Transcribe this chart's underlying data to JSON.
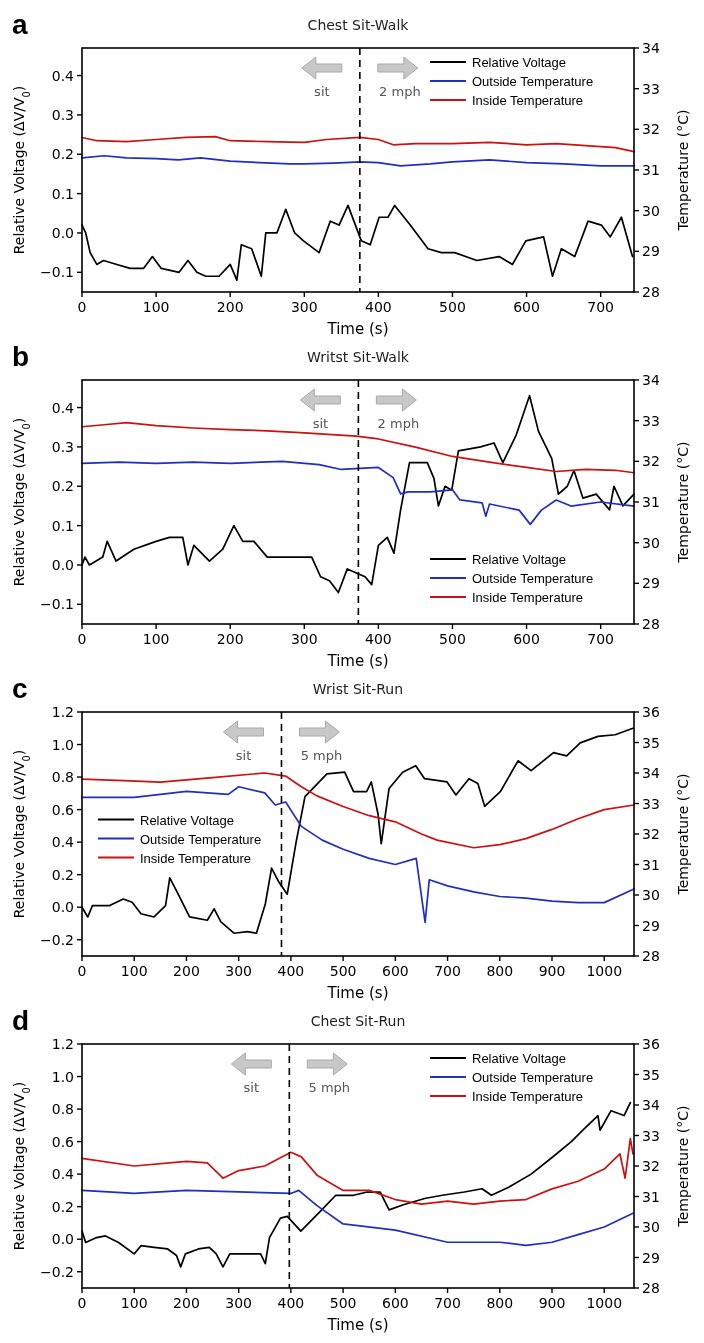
{
  "chart_data": [
    {
      "type": "line",
      "title": "Chest Sit-Walk",
      "xlabel": "Time (s)",
      "ylabel": "Relative Voltage (ΔV/V$_{0}$)",
      "y2label": "Temperature (°C)",
      "annotations": [
        "a",
        "sit",
        "2 mph"
      ],
      "legend": "top right",
      "xlim": [
        0,
        745
      ],
      "xticks": [
        0,
        100,
        200,
        300,
        400,
        500,
        600,
        700
      ],
      "ylim": [
        -0.15,
        0.47
      ],
      "yticks": [
        {
          "value": -0.1,
          "label": "−0.1"
        },
        {
          "value": 0,
          "label": "0.0"
        },
        0.1,
        0.2,
        0.3,
        0.4
      ],
      "y2lim": [
        28,
        34
      ],
      "y2ticks": [
        28,
        29,
        30,
        31,
        32,
        33,
        34
      ],
      "ref_lines": [
        {
          "axis": "x",
          "value": 375,
          "color": "#000000",
          "line_style": "dashed"
        }
      ],
      "series": [
        {
          "name": "Relative Voltage",
          "color": "#000000",
          "x": [
            0,
            5,
            11,
            20,
            29,
            47,
            65,
            83,
            95,
            107,
            131,
            143,
            155,
            167,
            185,
            200,
            209,
            215,
            229,
            242,
            248,
            263,
            275,
            287,
            299,
            320,
            335,
            347,
            359,
            377,
            389,
            401,
            413,
            422,
            443,
            467,
            485,
            503,
            533,
            563,
            581,
            599,
            623,
            635,
            647,
            665,
            683,
            701,
            713,
            728,
            743
          ],
          "values": [
            0.02,
            0.0,
            -0.05,
            -0.08,
            -0.07,
            -0.08,
            -0.09,
            -0.09,
            -0.06,
            -0.09,
            -0.1,
            -0.07,
            -0.1,
            -0.11,
            -0.11,
            -0.08,
            -0.12,
            -0.03,
            -0.04,
            -0.11,
            0.0,
            0.0,
            0.06,
            0.0,
            -0.02,
            -0.05,
            0.03,
            0.02,
            0.07,
            -0.02,
            -0.03,
            0.04,
            0.04,
            0.07,
            0.02,
            -0.04,
            -0.05,
            -0.05,
            -0.07,
            -0.06,
            -0.08,
            -0.02,
            -0.01,
            -0.11,
            -0.04,
            -0.06,
            0.03,
            0.02,
            -0.01,
            0.04,
            -0.06
          ]
        },
        {
          "name": "Outside Temperature",
          "color": "#1f2fbf",
          "axis": "y2",
          "x": [
            0,
            30,
            60,
            100,
            130,
            160,
            200,
            240,
            280,
            300,
            340,
            375,
            400,
            430,
            470,
            500,
            550,
            600,
            650,
            700,
            745
          ],
          "values": [
            31.3,
            31.35,
            31.3,
            31.28,
            31.25,
            31.3,
            31.22,
            31.18,
            31.15,
            31.15,
            31.17,
            31.2,
            31.18,
            31.1,
            31.15,
            31.2,
            31.25,
            31.18,
            31.15,
            31.1,
            31.1
          ]
        },
        {
          "name": "Inside Temperature",
          "color": "#cc1111",
          "axis": "y2",
          "x": [
            0,
            20,
            60,
            100,
            140,
            180,
            200,
            250,
            300,
            330,
            375,
            400,
            420,
            450,
            500,
            550,
            600,
            640,
            680,
            720,
            745
          ],
          "values": [
            31.8,
            31.72,
            31.7,
            31.75,
            31.8,
            31.82,
            31.72,
            31.7,
            31.68,
            31.75,
            31.8,
            31.75,
            31.62,
            31.65,
            31.65,
            31.68,
            31.62,
            31.65,
            31.6,
            31.55,
            31.45
          ]
        }
      ]
    },
    {
      "type": "line",
      "title": "Writst Sit-Walk",
      "xlabel": "Time (s)",
      "ylabel": "Relative Voltage (ΔV/V$_{0}$)",
      "y2label": "Temperature (°C)",
      "annotations": [
        "b",
        "sit",
        "2 mph"
      ],
      "legend": "bottom right",
      "xlim": [
        0,
        745
      ],
      "xticks": [
        0,
        100,
        200,
        300,
        400,
        500,
        600,
        700
      ],
      "ylim": [
        -0.15,
        0.47
      ],
      "yticks": [
        {
          "value": -0.1,
          "label": "−0.1"
        },
        {
          "value": 0,
          "label": "0.0"
        },
        0.1,
        0.2,
        0.3,
        0.4
      ],
      "y2lim": [
        28,
        34
      ],
      "y2ticks": [
        28,
        29,
        30,
        31,
        32,
        33,
        34
      ],
      "ref_lines": [
        {
          "axis": "x",
          "value": 373,
          "color": "#000000",
          "line_style": "dashed"
        }
      ],
      "series": [
        {
          "name": "Relative Voltage",
          "color": "#000000",
          "x": [
            0,
            4,
            10,
            28,
            34,
            46,
            70,
            100,
            118,
            136,
            143,
            151,
            172,
            190,
            205,
            217,
            232,
            250,
            274,
            310,
            322,
            334,
            346,
            358,
            382,
            391,
            400,
            412,
            421,
            430,
            442,
            466,
            475,
            481,
            490,
            499,
            508,
            538,
            556,
            568,
            586,
            604,
            616,
            634,
            643,
            655,
            664,
            676,
            694,
            712,
            718,
            730,
            745
          ],
          "values": [
            0.0,
            0.02,
            0.0,
            0.02,
            0.06,
            0.01,
            0.04,
            0.06,
            0.07,
            0.07,
            0.0,
            0.05,
            0.01,
            0.04,
            0.1,
            0.06,
            0.06,
            0.02,
            0.02,
            0.02,
            -0.03,
            -0.04,
            -0.07,
            -0.01,
            -0.03,
            -0.05,
            0.05,
            0.07,
            0.03,
            0.14,
            0.26,
            0.26,
            0.22,
            0.15,
            0.2,
            0.19,
            0.29,
            0.3,
            0.31,
            0.26,
            0.33,
            0.43,
            0.34,
            0.27,
            0.18,
            0.2,
            0.24,
            0.17,
            0.18,
            0.14,
            0.2,
            0.15,
            0.18
          ]
        },
        {
          "name": "Outside Temperature",
          "color": "#1f2fbf",
          "axis": "y2",
          "x": [
            0,
            50,
            100,
            150,
            200,
            270,
            320,
            350,
            400,
            420,
            430,
            440,
            470,
            500,
            510,
            540,
            545,
            550,
            590,
            605,
            620,
            640,
            660,
            700,
            745
          ],
          "values": [
            31.95,
            31.98,
            31.95,
            31.98,
            31.95,
            32.0,
            31.92,
            31.8,
            31.85,
            31.6,
            31.2,
            31.25,
            31.25,
            31.3,
            31.05,
            30.98,
            30.65,
            30.95,
            30.8,
            30.45,
            30.8,
            31.05,
            30.9,
            31.0,
            30.9
          ]
        },
        {
          "name": "Inside Temperature",
          "color": "#cc1111",
          "axis": "y2",
          "x": [
            0,
            30,
            60,
            100,
            150,
            200,
            250,
            300,
            370,
            400,
            450,
            500,
            550,
            600,
            640,
            680,
            720,
            745
          ],
          "values": [
            32.85,
            32.9,
            32.95,
            32.88,
            32.82,
            32.78,
            32.75,
            32.7,
            32.62,
            32.55,
            32.35,
            32.12,
            31.98,
            31.85,
            31.75,
            31.8,
            31.78,
            31.72
          ]
        }
      ]
    },
    {
      "type": "line",
      "title": "Wrist Sit-Run",
      "xlabel": "Time (s)",
      "ylabel": "Relative Voltage (ΔV/V$_{0}$)",
      "y2label": "Temperature (°C)",
      "annotations": [
        "c",
        "sit",
        "5 mph"
      ],
      "legend": "left",
      "xlim": [
        0,
        1057
      ],
      "xticks": [
        0,
        100,
        200,
        300,
        400,
        500,
        600,
        700,
        800,
        900,
        1000
      ],
      "ylim": [
        -0.3,
        1.2
      ],
      "yticks": [
        {
          "value": -0.2,
          "label": "−0.2"
        },
        {
          "value": 0,
          "label": "0.0"
        },
        0.2,
        0.4,
        0.6,
        0.8,
        {
          "value": 1,
          "label": "1.0"
        },
        1.2
      ],
      "y2lim": [
        28,
        36
      ],
      "y2ticks": [
        28,
        29,
        30,
        31,
        32,
        33,
        34,
        35,
        36
      ],
      "ref_lines": [
        {
          "axis": "x",
          "value": 382,
          "color": "#000000",
          "line_style": "dashed"
        }
      ],
      "series": [
        {
          "name": "Relative Voltage",
          "color": "#000000",
          "x": [
            0,
            11,
            20,
            53,
            79,
            96,
            113,
            138,
            160,
            168,
            181,
            206,
            240,
            253,
            266,
            291,
            317,
            334,
            351,
            363,
            376,
            393,
            410,
            427,
            469,
            503,
            520,
            545,
            554,
            567,
            573,
            588,
            614,
            639,
            656,
            699,
            716,
            741,
            758,
            771,
            801,
            835,
            860,
            903,
            928,
            954,
            988,
            1021,
            1055
          ],
          "values": [
            0.0,
            -0.06,
            0.01,
            0.01,
            0.05,
            0.03,
            -0.04,
            -0.06,
            0.01,
            0.18,
            0.1,
            -0.06,
            -0.08,
            -0.01,
            -0.09,
            -0.16,
            -0.15,
            -0.16,
            0.02,
            0.24,
            0.16,
            0.08,
            0.4,
            0.68,
            0.82,
            0.83,
            0.71,
            0.71,
            0.77,
            0.57,
            0.39,
            0.73,
            0.83,
            0.87,
            0.79,
            0.77,
            0.69,
            0.79,
            0.76,
            0.62,
            0.71,
            0.9,
            0.84,
            0.95,
            0.93,
            1.01,
            1.05,
            1.06,
            1.1
          ]
        },
        {
          "name": "Outside Temperature",
          "color": "#1f2fbf",
          "axis": "y2",
          "x": [
            0,
            100,
            200,
            280,
            300,
            350,
            370,
            390,
            420,
            460,
            500,
            550,
            600,
            640,
            657,
            665,
            700,
            750,
            800,
            850,
            900,
            950,
            1000,
            1057
          ],
          "values": [
            33.2,
            33.2,
            33.4,
            33.3,
            33.55,
            33.35,
            32.95,
            33.05,
            32.25,
            31.8,
            31.5,
            31.2,
            31.0,
            31.2,
            29.1,
            30.5,
            30.3,
            30.1,
            29.95,
            29.9,
            29.8,
            29.75,
            29.75,
            30.2
          ]
        },
        {
          "name": "Inside Temperature",
          "color": "#cc1111",
          "axis": "y2",
          "x": [
            0,
            80,
            150,
            250,
            350,
            390,
            420,
            450,
            500,
            550,
            600,
            650,
            680,
            750,
            800,
            850,
            900,
            950,
            1000,
            1057
          ],
          "values": [
            33.8,
            33.75,
            33.7,
            33.85,
            34.0,
            33.9,
            33.55,
            33.25,
            32.9,
            32.6,
            32.4,
            32.0,
            31.8,
            31.55,
            31.65,
            31.85,
            32.15,
            32.5,
            32.8,
            32.95
          ]
        }
      ]
    },
    {
      "type": "line",
      "title": "Chest Sit-Run",
      "xlabel": "Time (s)",
      "ylabel": "Relative Voltage (ΔV/V$_{0}$)",
      "y2label": "Temperature (°C)",
      "annotations": [
        "d",
        "sit",
        "5 mph"
      ],
      "legend": "top right",
      "xlim": [
        0,
        1057
      ],
      "xticks": [
        0,
        100,
        200,
        300,
        400,
        500,
        600,
        700,
        800,
        900,
        1000
      ],
      "ylim": [
        -0.3,
        1.2
      ],
      "yticks": [
        {
          "value": -0.2,
          "label": "−0.2"
        },
        {
          "value": 0,
          "label": "0.0"
        },
        0.2,
        0.4,
        0.6,
        0.8,
        {
          "value": 1,
          "label": "1.0"
        },
        1.2
      ],
      "y2lim": [
        28,
        36
      ],
      "y2ticks": [
        28,
        29,
        30,
        31,
        32,
        33,
        34,
        35,
        36
      ],
      "ref_lines": [
        {
          "axis": "x",
          "value": 397,
          "color": "#000000",
          "line_style": "dashed"
        }
      ],
      "series": [
        {
          "name": "Relative Voltage",
          "color": "#000000",
          "x": [
            0,
            7,
            28,
            45,
            70,
            100,
            113,
            138,
            164,
            181,
            189,
            198,
            223,
            244,
            257,
            270,
            283,
            317,
            342,
            351,
            359,
            380,
            393,
            419,
            453,
            486,
            520,
            546,
            571,
            588,
            614,
            656,
            690,
            732,
            766,
            784,
            817,
            860,
            903,
            937,
            962,
            988,
            992,
            1013,
            1038,
            1050
          ],
          "values": [
            0.05,
            -0.02,
            0.01,
            0.02,
            -0.02,
            -0.09,
            -0.04,
            -0.05,
            -0.06,
            -0.1,
            -0.17,
            -0.09,
            -0.06,
            -0.05,
            -0.09,
            -0.17,
            -0.09,
            -0.09,
            -0.09,
            -0.15,
            0.01,
            0.13,
            0.14,
            0.05,
            0.16,
            0.27,
            0.27,
            0.29,
            0.29,
            0.18,
            0.21,
            0.25,
            0.27,
            0.29,
            0.31,
            0.27,
            0.32,
            0.4,
            0.51,
            0.6,
            0.68,
            0.76,
            0.67,
            0.79,
            0.76,
            0.84
          ]
        },
        {
          "name": "Outside Temperature",
          "color": "#1f2fbf",
          "axis": "y2",
          "x": [
            0,
            100,
            200,
            300,
            400,
            415,
            450,
            500,
            600,
            700,
            800,
            850,
            900,
            950,
            1000,
            1055
          ],
          "values": [
            31.2,
            31.1,
            31.2,
            31.15,
            31.1,
            31.2,
            30.7,
            30.1,
            29.9,
            29.5,
            29.5,
            29.4,
            29.5,
            29.75,
            30.0,
            30.45
          ]
        },
        {
          "name": "Inside Temperature",
          "color": "#cc1111",
          "axis": "y2",
          "x": [
            0,
            100,
            200,
            240,
            270,
            300,
            350,
            400,
            420,
            450,
            500,
            550,
            600,
            650,
            700,
            750,
            800,
            850,
            900,
            950,
            1000,
            1030,
            1040,
            1050,
            1055
          ],
          "values": [
            32.25,
            32.0,
            32.15,
            32.1,
            31.6,
            31.85,
            32.0,
            32.45,
            32.3,
            31.7,
            31.2,
            31.2,
            30.9,
            30.75,
            30.85,
            30.75,
            30.85,
            30.9,
            31.25,
            31.5,
            31.9,
            32.4,
            31.6,
            32.9,
            32.4
          ]
        }
      ]
    }
  ]
}
